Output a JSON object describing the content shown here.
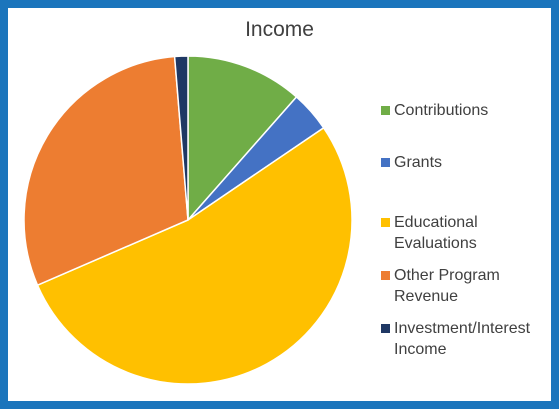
{
  "chart_data": {
    "type": "pie",
    "title": "Income",
    "legend_position": "right",
    "start_angle_deg": 0,
    "direction": "clockwise",
    "slices": [
      {
        "label": "Contributions",
        "value": 11.5,
        "color": "#70ad47"
      },
      {
        "label": "Grants",
        "value": 4.0,
        "color": "#4472c4"
      },
      {
        "label": "Educational Evaluations",
        "value": 53.0,
        "color": "#ffc000"
      },
      {
        "label": "Other Program Revenue",
        "value": 30.2,
        "color": "#ed7d31"
      },
      {
        "label": "Investment/Interest Income",
        "value": 1.3,
        "color": "#1f3864"
      }
    ],
    "legend_lines": [
      [
        "Contributions"
      ],
      [
        "Grants"
      ],
      [
        "Educational",
        "Evaluations"
      ],
      [
        "Other Program",
        "Revenue"
      ],
      [
        "Investment/Interest",
        "Income"
      ]
    ]
  }
}
